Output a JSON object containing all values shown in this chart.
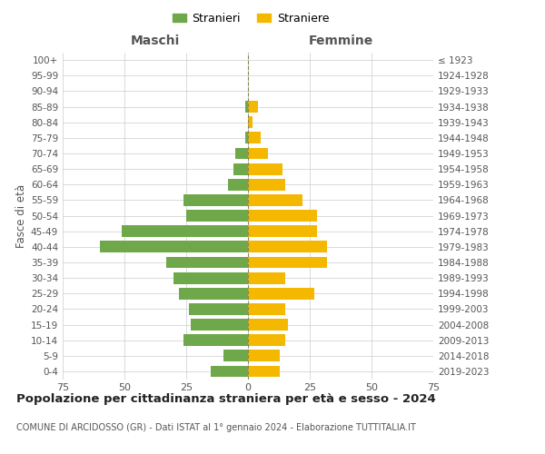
{
  "age_groups": [
    "0-4",
    "5-9",
    "10-14",
    "15-19",
    "20-24",
    "25-29",
    "30-34",
    "35-39",
    "40-44",
    "45-49",
    "50-54",
    "55-59",
    "60-64",
    "65-69",
    "70-74",
    "75-79",
    "80-84",
    "85-89",
    "90-94",
    "95-99",
    "100+"
  ],
  "birth_years": [
    "2019-2023",
    "2014-2018",
    "2009-2013",
    "2004-2008",
    "1999-2003",
    "1994-1998",
    "1989-1993",
    "1984-1988",
    "1979-1983",
    "1974-1978",
    "1969-1973",
    "1964-1968",
    "1959-1963",
    "1954-1958",
    "1949-1953",
    "1944-1948",
    "1939-1943",
    "1934-1938",
    "1929-1933",
    "1924-1928",
    "≤ 1923"
  ],
  "maschi": [
    15,
    10,
    26,
    23,
    24,
    28,
    30,
    33,
    60,
    51,
    25,
    26,
    8,
    6,
    5,
    1,
    0,
    1,
    0,
    0,
    0
  ],
  "femmine": [
    13,
    13,
    15,
    16,
    15,
    27,
    15,
    32,
    32,
    28,
    28,
    22,
    15,
    14,
    8,
    5,
    2,
    4,
    0,
    0,
    0
  ],
  "color_maschi": "#6fa84b",
  "color_femmine": "#f5b800",
  "title": "Popolazione per cittadinanza straniera per età e sesso - 2024",
  "subtitle": "COMUNE DI ARCIDOSSO (GR) - Dati ISTAT al 1° gennaio 2024 - Elaborazione TUTTITALIA.IT",
  "xlabel_left": "Maschi",
  "xlabel_right": "Femmine",
  "ylabel_left": "Fasce di età",
  "xlim": 75,
  "legend_maschi": "Stranieri",
  "legend_femmine": "Straniere",
  "background_color": "#ffffff",
  "grid_color": "#cccccc"
}
